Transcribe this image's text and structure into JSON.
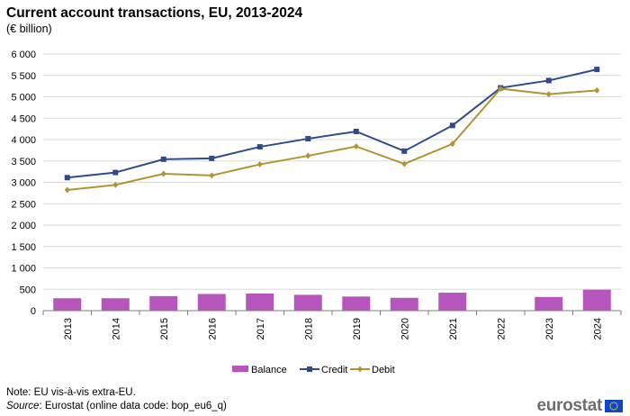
{
  "title": "Current account transactions, EU, 2013-2024",
  "subtitle": "(€ billion)",
  "note": "Note: EU vis-à-vis extra-EU.",
  "source_label": "Source",
  "source_text": ": Eurostat (online data code: bop_eu6_q)",
  "logo_text": "eurostat",
  "chart_data": {
    "type": "bar+line",
    "title": "Current account transactions, EU, 2013-2024",
    "ylabel": "€ billion",
    "ylim": [
      0,
      6000
    ],
    "yticks": [
      0,
      500,
      1000,
      1500,
      2000,
      2500,
      3000,
      3500,
      4000,
      4500,
      5000,
      5500,
      6000
    ],
    "ytick_labels": [
      "0",
      "500",
      "1 000",
      "1 500",
      "2 000",
      "2 500",
      "3 000",
      "3 500",
      "4 000",
      "4 500",
      "5 000",
      "5 500",
      "6 000"
    ],
    "grid": true,
    "legend_position": "bottom",
    "categories": [
      "2013",
      "2014",
      "2015",
      "2016",
      "2017",
      "2018",
      "2019",
      "2020",
      "2021",
      "2022",
      "2023",
      "2024"
    ],
    "series": [
      {
        "name": "Balance",
        "kind": "bar",
        "color": "#b656bd",
        "values": [
          290,
          290,
          340,
          390,
          400,
          370,
          330,
          300,
          420,
          10,
          320,
          490
        ]
      },
      {
        "name": "Credit",
        "kind": "line",
        "color": "#2e4a8c",
        "marker": "square",
        "values": [
          3110,
          3230,
          3540,
          3560,
          3830,
          4020,
          4190,
          3730,
          4330,
          5210,
          5380,
          5640
        ]
      },
      {
        "name": "Debit",
        "kind": "line",
        "color": "#b09432",
        "marker": "diamond",
        "values": [
          2820,
          2940,
          3200,
          3160,
          3420,
          3620,
          3840,
          3430,
          3900,
          5190,
          5060,
          5150
        ]
      }
    ]
  }
}
